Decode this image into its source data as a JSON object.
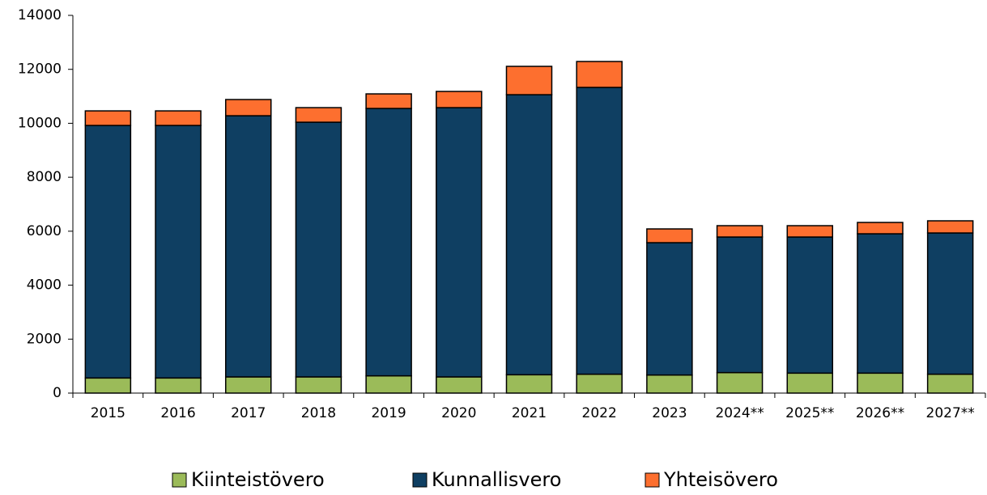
{
  "chart_data": {
    "type": "stacked_bar",
    "categories": [
      "2015",
      "2016",
      "2017",
      "2018",
      "2019",
      "2020",
      "2021",
      "2022",
      "2023",
      "2024**",
      "2025**",
      "2026**",
      "2027**"
    ],
    "series": [
      {
        "name": "Kiinteistövero",
        "color": "#9bbb59",
        "values": [
          560,
          560,
          600,
          600,
          640,
          600,
          680,
          700,
          670,
          760,
          740,
          740,
          700
        ]
      },
      {
        "name": "Kunnallisvero",
        "color": "#0f3f62",
        "values": [
          9360,
          9360,
          9680,
          9440,
          9910,
          9980,
          10380,
          10630,
          4905,
          5025,
          5045,
          5165,
          5235
        ]
      },
      {
        "name": "Yhteisövero",
        "color": "#fd6f2f",
        "values": [
          540,
          540,
          600,
          540,
          540,
          600,
          1050,
          960,
          510,
          420,
          420,
          420,
          450
        ]
      }
    ],
    "ylim": [
      0,
      14000
    ],
    "yticks": [
      0,
      2000,
      4000,
      6000,
      8000,
      10000,
      12000,
      14000
    ],
    "grid": false,
    "legend": "bottom"
  }
}
